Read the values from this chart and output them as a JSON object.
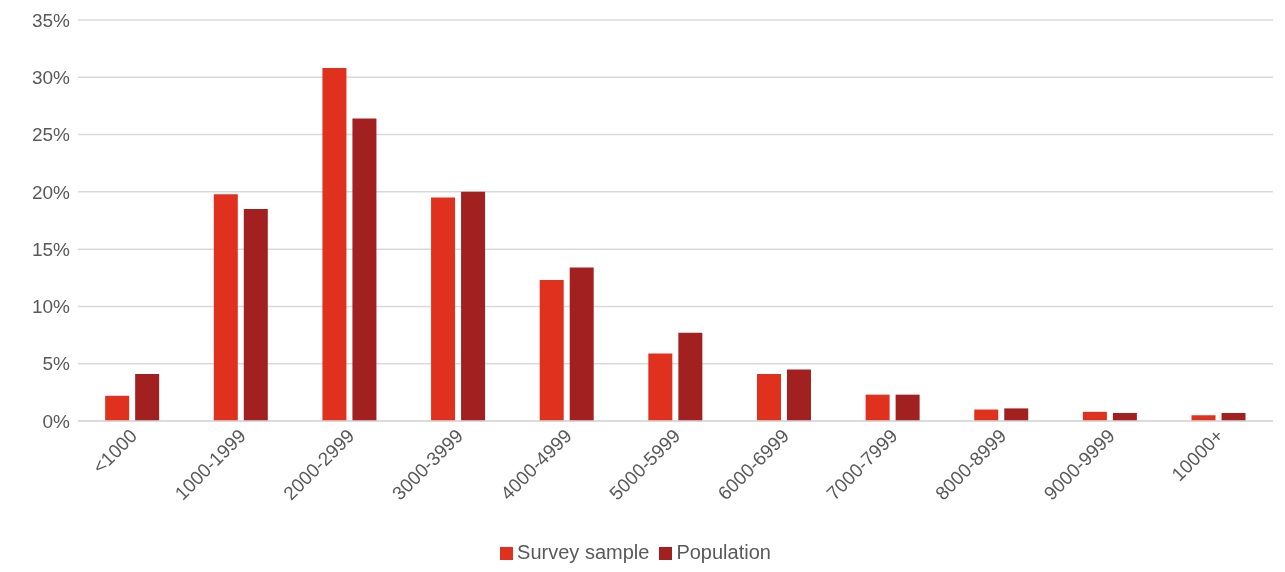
{
  "chart_data": {
    "type": "bar",
    "categories": [
      "<1000",
      "1000-1999",
      "2000-2999",
      "3000-3999",
      "4000-4999",
      "5000-5999",
      "6000-6999",
      "7000-7999",
      "8000-8999",
      "9000-9999",
      "10000+"
    ],
    "series": [
      {
        "name": "Survey sample",
        "color": "#e0301e",
        "values": [
          2.2,
          19.8,
          30.8,
          19.5,
          12.3,
          5.9,
          4.1,
          2.3,
          1.0,
          0.8,
          0.5
        ]
      },
      {
        "name": "Population",
        "color": "#a32020",
        "values": [
          4.1,
          18.5,
          26.4,
          20.0,
          13.4,
          7.7,
          4.5,
          2.3,
          1.1,
          0.7,
          0.7
        ]
      }
    ],
    "ylim": [
      0,
      35
    ],
    "yticks": [
      {
        "value": 0,
        "label": "0%"
      },
      {
        "value": 5,
        "label": "5%"
      },
      {
        "value": 10,
        "label": "10%"
      },
      {
        "value": 15,
        "label": "15%"
      },
      {
        "value": 20,
        "label": "20%"
      },
      {
        "value": 25,
        "label": "25%"
      },
      {
        "value": 30,
        "label": "30%"
      },
      {
        "value": 35,
        "label": "35%"
      }
    ],
    "grid": "y",
    "legend": "bottom"
  }
}
